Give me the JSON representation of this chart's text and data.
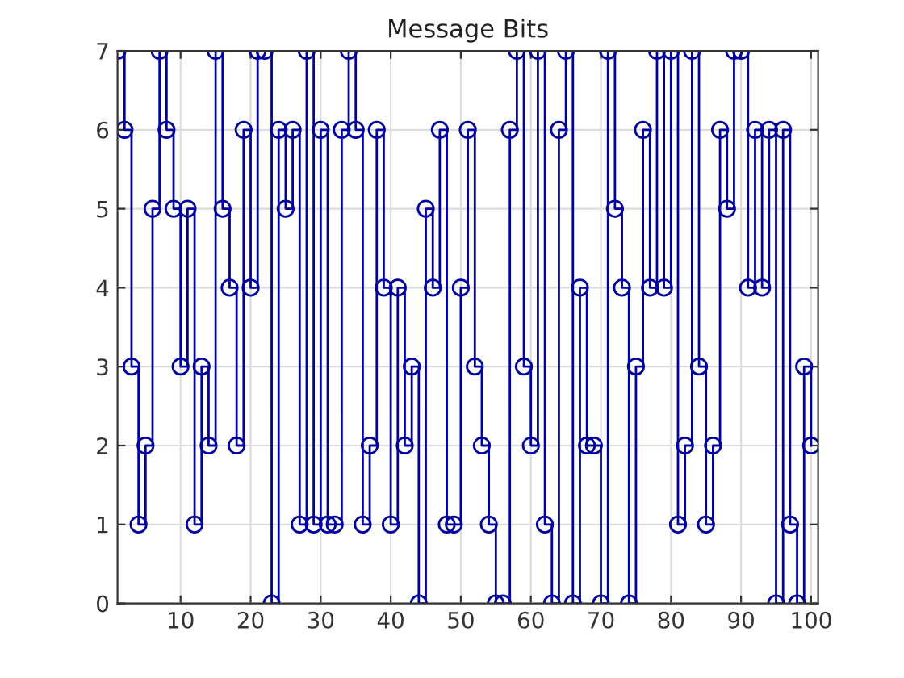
{
  "chart_data": {
    "type": "step",
    "title": "Message Bits",
    "x": [
      1,
      2,
      3,
      4,
      5,
      6,
      7,
      8,
      9,
      10,
      11,
      12,
      13,
      14,
      15,
      16,
      17,
      18,
      19,
      20,
      21,
      22,
      23,
      24,
      25,
      26,
      27,
      28,
      29,
      30,
      31,
      32,
      33,
      34,
      35,
      36,
      37,
      38,
      39,
      40,
      41,
      42,
      43,
      44,
      45,
      46,
      47,
      48,
      49,
      50,
      51,
      52,
      53,
      54,
      55,
      56,
      57,
      58,
      59,
      60,
      61,
      62,
      63,
      64,
      65,
      66,
      67,
      68,
      69,
      70,
      71,
      72,
      73,
      74,
      75,
      76,
      77,
      78,
      79,
      80,
      81,
      82,
      83,
      84,
      85,
      86,
      87,
      88,
      89,
      90,
      91,
      92,
      93,
      94,
      95,
      96,
      97,
      98,
      99,
      100
    ],
    "series": [
      {
        "color": "#0000a0",
        "values": [
          7,
          6,
          3,
          1,
          2,
          5,
          7,
          6,
          5,
          3,
          5,
          1,
          3,
          2,
          7,
          5,
          4,
          2,
          6,
          4,
          7,
          7,
          0,
          6,
          5,
          6,
          1,
          7,
          1,
          6,
          1,
          1,
          6,
          7,
          6,
          1,
          2,
          6,
          4,
          1,
          4,
          2,
          3,
          0,
          5,
          4,
          6,
          1,
          1,
          4,
          6,
          3,
          2,
          1,
          0,
          0,
          6,
          7,
          3,
          2,
          7,
          1,
          0,
          6,
          7,
          0,
          4,
          2,
          2,
          0,
          7,
          5,
          4,
          0,
          3,
          6,
          4,
          7,
          4,
          7,
          1,
          2,
          7,
          3,
          1,
          2,
          6,
          5,
          7,
          7,
          4,
          6,
          4,
          6,
          0,
          6,
          1,
          0,
          3,
          2
        ]
      }
    ],
    "marker": "circle",
    "line_style": "solid",
    "xlim": [
      1,
      101
    ],
    "xticks": [
      10,
      20,
      30,
      40,
      50,
      60,
      70,
      80,
      90,
      100
    ],
    "ylim": [
      0,
      7
    ],
    "yticks": [
      0,
      1,
      2,
      3,
      4,
      5,
      6,
      7
    ],
    "grid": true
  }
}
